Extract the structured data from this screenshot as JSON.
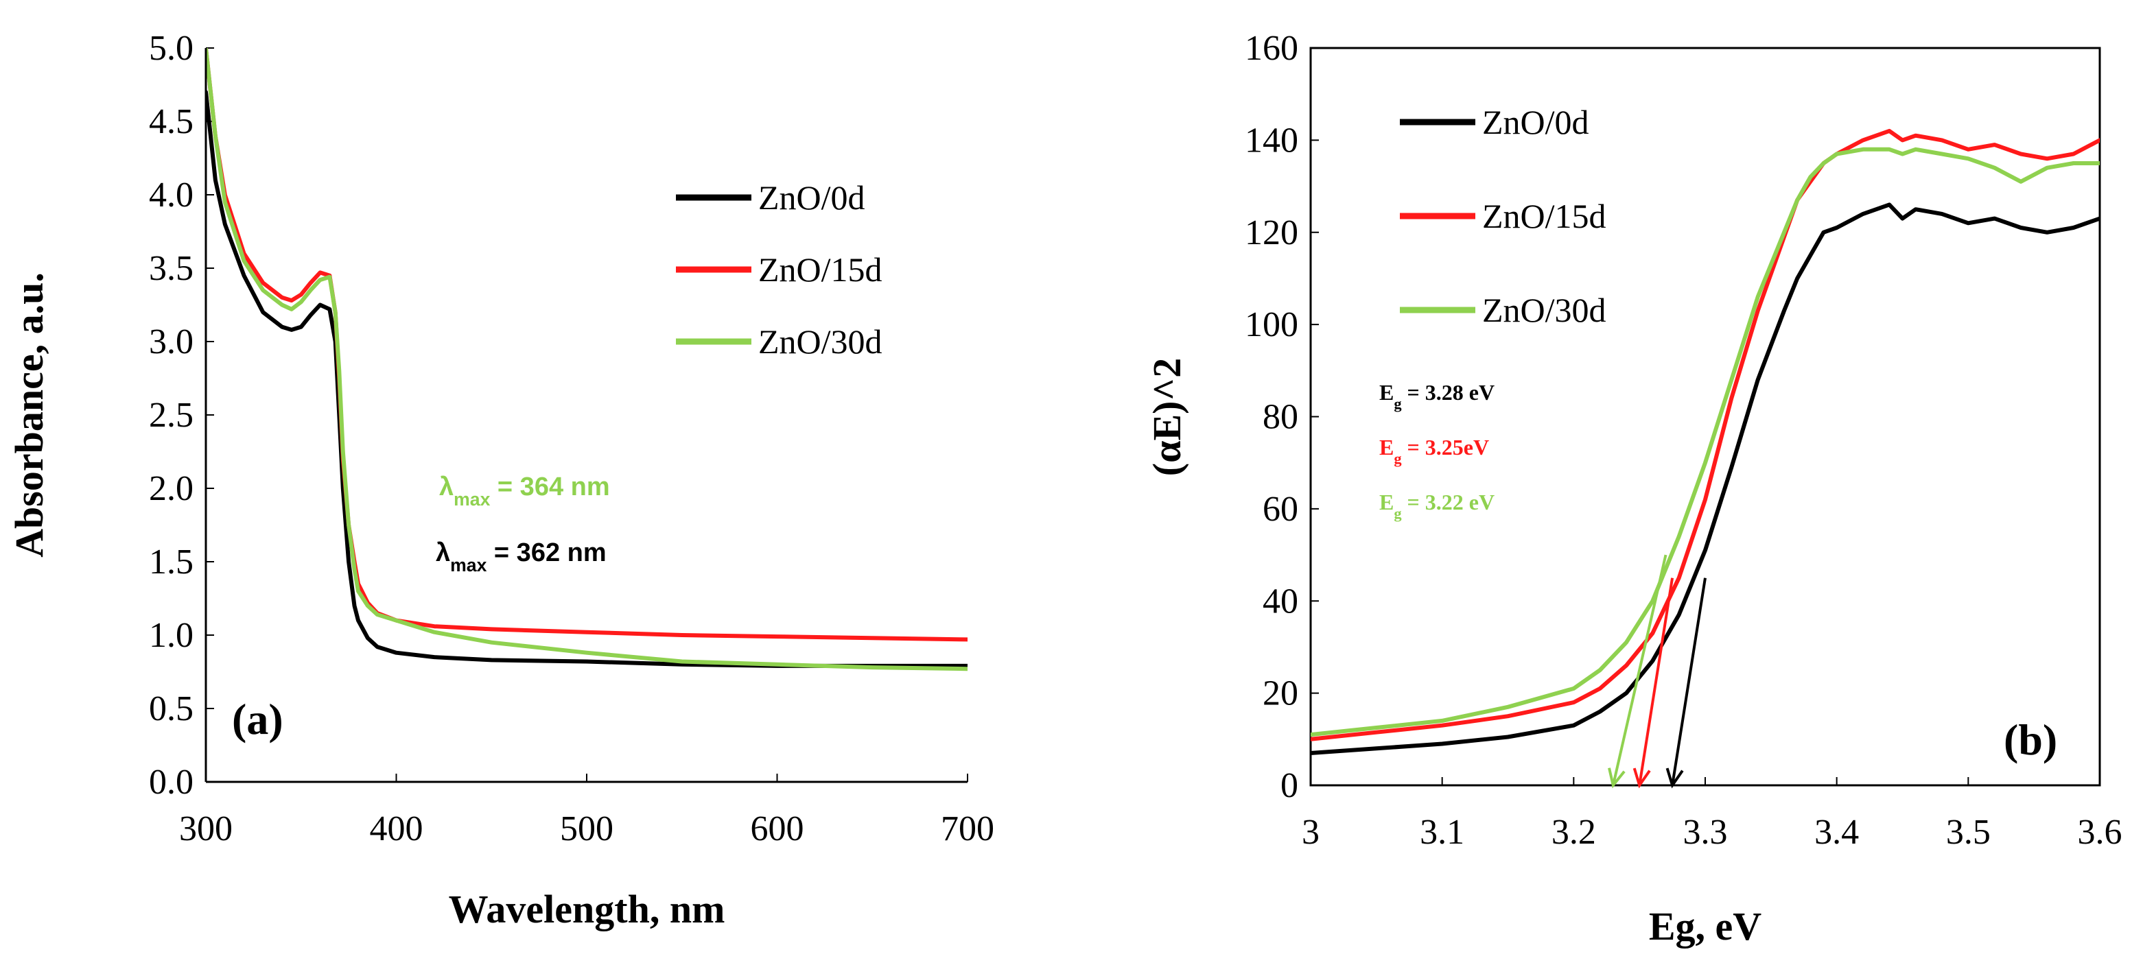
{
  "colors": {
    "zno_0d": "#000000",
    "zno_15d": "#ff1a1a",
    "zno_30d": "#8fd14f"
  },
  "chart_data": [
    {
      "type": "line",
      "panel_label": "(a)",
      "xlabel": "Wavelength, nm",
      "ylabel": "Absorbance, a.u.",
      "xlim": [
        300,
        700
      ],
      "ylim": [
        0,
        5
      ],
      "x_ticks": [
        "300",
        "400",
        "500",
        "600",
        "700"
      ],
      "y_ticks": [
        "0.0",
        "0.5",
        "1.0",
        "1.5",
        "2.0",
        "2.5",
        "3.0",
        "3.5",
        "4.0",
        "4.5",
        "5.0"
      ],
      "legend_position": "right",
      "series": [
        {
          "name": "ZnO/0d",
          "color_key": "zno_0d",
          "x": [
            300,
            305,
            310,
            320,
            330,
            340,
            345,
            350,
            355,
            360,
            365,
            368,
            370,
            372,
            375,
            378,
            380,
            385,
            390,
            400,
            420,
            450,
            500,
            550,
            600,
            650,
            700
          ],
          "y": [
            4.7,
            4.1,
            3.8,
            3.45,
            3.2,
            3.1,
            3.08,
            3.1,
            3.18,
            3.25,
            3.22,
            3.0,
            2.5,
            2.0,
            1.5,
            1.2,
            1.1,
            0.98,
            0.92,
            0.88,
            0.85,
            0.83,
            0.82,
            0.8,
            0.79,
            0.79,
            0.79
          ]
        },
        {
          "name": "ZnO/15d",
          "color_key": "zno_15d",
          "x": [
            300,
            305,
            310,
            320,
            330,
            340,
            345,
            350,
            355,
            360,
            365,
            368,
            370,
            372,
            375,
            378,
            380,
            385,
            390,
            400,
            420,
            450,
            500,
            550,
            600,
            650,
            700
          ],
          "y": [
            5.0,
            4.4,
            4.0,
            3.6,
            3.4,
            3.3,
            3.28,
            3.32,
            3.4,
            3.47,
            3.45,
            3.2,
            2.75,
            2.2,
            1.75,
            1.5,
            1.35,
            1.22,
            1.15,
            1.1,
            1.06,
            1.04,
            1.02,
            1.0,
            0.99,
            0.98,
            0.97
          ]
        },
        {
          "name": "ZnO/30d",
          "color_key": "zno_30d",
          "x": [
            300,
            305,
            310,
            320,
            330,
            340,
            345,
            350,
            355,
            360,
            365,
            368,
            370,
            372,
            375,
            378,
            380,
            385,
            390,
            400,
            420,
            450,
            500,
            550,
            600,
            650,
            700
          ],
          "y": [
            5.0,
            4.4,
            3.95,
            3.55,
            3.35,
            3.25,
            3.22,
            3.27,
            3.35,
            3.42,
            3.44,
            3.2,
            2.8,
            2.25,
            1.75,
            1.45,
            1.3,
            1.2,
            1.14,
            1.1,
            1.02,
            0.95,
            0.88,
            0.82,
            0.8,
            0.78,
            0.77
          ]
        }
      ],
      "annotations": [
        {
          "symbol": "λ",
          "subscript": "max",
          "text": " = 364 nm",
          "color_key": "zno_30d"
        },
        {
          "symbol": "λ",
          "subscript": "max",
          "text": " = 362 nm",
          "color_key": "zno_0d"
        }
      ]
    },
    {
      "type": "line",
      "panel_label": "(b)",
      "xlabel": "Eg, eV",
      "ylabel": "(αE)^2",
      "xlim": [
        3.0,
        3.6
      ],
      "ylim": [
        0,
        160
      ],
      "x_ticks": [
        "3",
        "3.1",
        "3.2",
        "3.3",
        "3.4",
        "3.5",
        "3.6"
      ],
      "y_ticks": [
        "0",
        "20",
        "40",
        "60",
        "80",
        "100",
        "120",
        "140",
        "160"
      ],
      "legend_position": "top-left",
      "series": [
        {
          "name": "ZnO/0d",
          "color_key": "zno_0d",
          "x": [
            3.0,
            3.05,
            3.1,
            3.15,
            3.2,
            3.22,
            3.24,
            3.26,
            3.28,
            3.3,
            3.32,
            3.34,
            3.36,
            3.37,
            3.38,
            3.39,
            3.4,
            3.42,
            3.44,
            3.45,
            3.46,
            3.48,
            3.5,
            3.52,
            3.54,
            3.56,
            3.58,
            3.6
          ],
          "y": [
            7,
            8,
            9,
            10.5,
            13,
            16,
            20,
            27,
            37,
            51,
            69,
            88,
            103,
            110,
            115,
            120,
            121,
            124,
            126,
            123,
            125,
            124,
            122,
            123,
            121,
            120,
            121,
            123
          ]
        },
        {
          "name": "ZnO/15d",
          "color_key": "zno_15d",
          "x": [
            3.0,
            3.05,
            3.1,
            3.15,
            3.2,
            3.22,
            3.24,
            3.26,
            3.28,
            3.3,
            3.32,
            3.34,
            3.36,
            3.37,
            3.38,
            3.39,
            3.4,
            3.42,
            3.44,
            3.45,
            3.46,
            3.48,
            3.5,
            3.52,
            3.54,
            3.56,
            3.58,
            3.6
          ],
          "y": [
            10,
            11.5,
            13,
            15,
            18,
            21,
            26,
            33,
            45,
            62,
            84,
            103,
            119,
            127,
            131,
            135,
            137,
            140,
            142,
            140,
            141,
            140,
            138,
            139,
            137,
            136,
            137,
            140
          ]
        },
        {
          "name": "ZnO/30d",
          "color_key": "zno_30d",
          "x": [
            3.0,
            3.05,
            3.1,
            3.15,
            3.2,
            3.22,
            3.24,
            3.26,
            3.28,
            3.3,
            3.32,
            3.34,
            3.36,
            3.37,
            3.38,
            3.39,
            3.4,
            3.42,
            3.44,
            3.45,
            3.46,
            3.48,
            3.5,
            3.52,
            3.54,
            3.56,
            3.58,
            3.6
          ],
          "y": [
            11,
            12.5,
            14,
            17,
            21,
            25,
            31,
            40,
            54,
            70,
            88,
            106,
            120,
            127,
            132,
            135,
            137,
            138,
            138,
            137,
            138,
            137,
            136,
            134,
            131,
            134,
            135,
            135
          ]
        }
      ],
      "arrows": [
        {
          "color_key": "zno_0d",
          "from": [
            3.3,
            45
          ],
          "to": [
            3.275,
            0
          ]
        },
        {
          "color_key": "zno_15d",
          "from": [
            3.275,
            45
          ],
          "to": [
            3.25,
            0
          ]
        },
        {
          "color_key": "zno_30d",
          "from": [
            3.27,
            50
          ],
          "to": [
            3.23,
            0
          ]
        }
      ],
      "annotations": [
        {
          "symbol": "E",
          "subscript": "g",
          "text": " = 3.28 eV",
          "color_key": "zno_0d"
        },
        {
          "symbol": "E",
          "subscript": "g",
          "text": " = 3.25eV",
          "color_key": "zno_15d"
        },
        {
          "symbol": "E",
          "subscript": "g",
          "text": " = 3.22 eV",
          "color_key": "zno_30d"
        }
      ]
    }
  ]
}
